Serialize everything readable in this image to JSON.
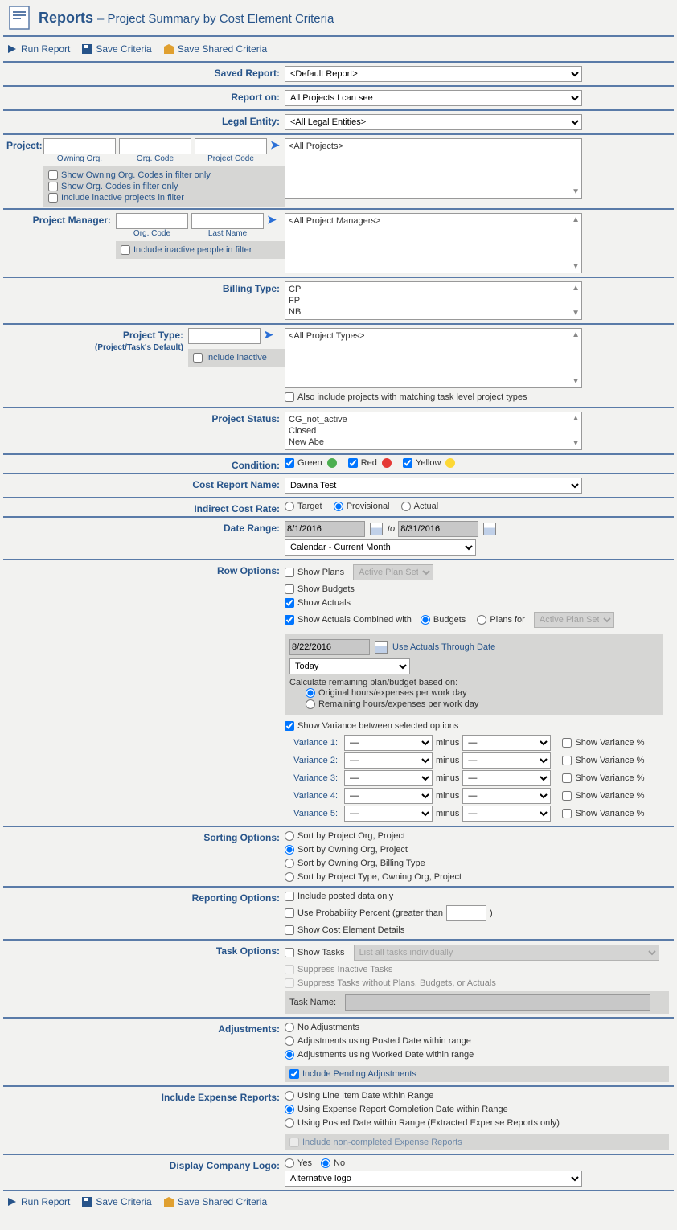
{
  "header": {
    "title": "Reports",
    "subtitle": "– Project Summary by Cost Element Criteria"
  },
  "toolbar": {
    "run": "Run Report",
    "save": "Save Criteria",
    "saveShared": "Save Shared Criteria"
  },
  "savedReport": {
    "label": "Saved Report:",
    "value": "<Default Report>"
  },
  "reportOn": {
    "label": "Report on:",
    "value": "All Projects I can see"
  },
  "legalEntity": {
    "label": "Legal Entity:",
    "value": "<All Legal Entities>"
  },
  "project": {
    "label": "Project:",
    "owningOrg": "Owning Org.",
    "orgCode": "Org. Code",
    "projectCode": "Project Code",
    "chkOwning": "Show Owning Org. Codes in filter only",
    "chkOrg": "Show Org. Codes in filter only",
    "chkInactive": "Include inactive projects in filter",
    "listPlaceholder": "<All Projects>"
  },
  "pm": {
    "label": "Project Manager:",
    "orgCode": "Org. Code",
    "lastName": "Last Name",
    "chkInactive": "Include inactive people in filter",
    "listPlaceholder": "<All Project Managers>"
  },
  "billingType": {
    "label": "Billing Type:",
    "items": [
      "CP",
      "FP",
      "NB"
    ]
  },
  "projectType": {
    "label": "Project Type:",
    "sub": "(Project/Task's Default)",
    "chk": "Include inactive",
    "listPlaceholder": "<All Project Types>",
    "footnote": "Also include projects with matching task level project types"
  },
  "projectStatus": {
    "label": "Project Status:",
    "items": [
      "CG_not_active",
      "Closed",
      "New Abe"
    ]
  },
  "condition": {
    "label": "Condition:",
    "green": "Green",
    "red": "Red",
    "yellow": "Yellow"
  },
  "costReportName": {
    "label": "Cost Report Name:",
    "value": "Davina Test"
  },
  "indirectCostRate": {
    "label": "Indirect Cost Rate:",
    "target": "Target",
    "provisional": "Provisional",
    "actual": "Actual"
  },
  "dateRange": {
    "label": "Date Range:",
    "from": "8/1/2016",
    "to": "to",
    "toDate": "8/31/2016",
    "preset": "Calendar - Current Month"
  },
  "rowOptions": {
    "label": "Row Options:",
    "showPlans": "Show Plans",
    "activePlanSets": "Active Plan Sets",
    "showBudgets": "Show Budgets",
    "showActuals": "Show Actuals",
    "showActualsCombined": "Show Actuals Combined with",
    "budgets": "Budgets",
    "plansFor": "Plans for",
    "actualsDate": "8/22/2016",
    "useActualsThrough": "Use Actuals Through Date",
    "today": "Today",
    "calcRemaining": "Calculate remaining plan/budget based on:",
    "calcOrig": "Original hours/expenses per work day",
    "calcRem": "Remaining hours/expenses per work day",
    "showVariance": "Show Variance between selected options",
    "variances": [
      "Variance 1:",
      "Variance 2:",
      "Variance 3:",
      "Variance 4:",
      "Variance 5:"
    ],
    "dash": "—",
    "minus": "minus",
    "showVarPct": "Show Variance %"
  },
  "sorting": {
    "label": "Sorting Options:",
    "o1": "Sort by Project Org, Project",
    "o2": "Sort by Owning Org, Project",
    "o3": "Sort by Owning Org, Billing Type",
    "o4": "Sort by Project Type, Owning Org, Project"
  },
  "reporting": {
    "label": "Reporting Options:",
    "o1": "Include posted data only",
    "o2": "Use Probability Percent (greater than",
    "o2suffix": ")",
    "o3": "Show Cost Element Details"
  },
  "taskOptions": {
    "label": "Task Options:",
    "showTasks": "Show Tasks",
    "listAll": "List all tasks individually",
    "suppressInactive": "Suppress Inactive Tasks",
    "suppressNoData": "Suppress Tasks without Plans, Budgets, or Actuals",
    "taskName": "Task Name:"
  },
  "adjustments": {
    "label": "Adjustments:",
    "noAdj": "No Adjustments",
    "posted": "Adjustments using Posted Date within range",
    "worked": "Adjustments using Worked Date within range",
    "pending": "Include Pending Adjustments"
  },
  "expense": {
    "label": "Include Expense Reports:",
    "o1": "Using Line Item Date within Range",
    "o2": "Using Expense Report Completion Date within Range",
    "o3": "Using Posted Date within Range (Extracted Expense Reports only)",
    "nonCompleted": "Include non-completed Expense Reports"
  },
  "logo": {
    "label": "Display Company Logo:",
    "yes": "Yes",
    "no": "No",
    "alt": "Alternative logo"
  }
}
